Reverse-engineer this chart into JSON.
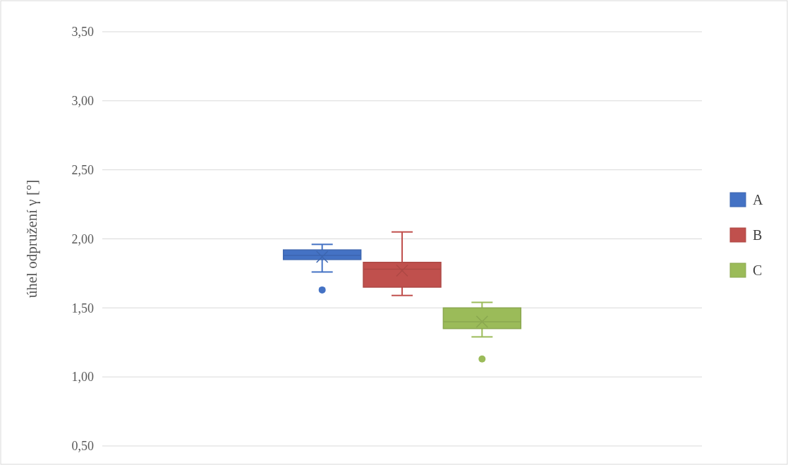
{
  "chart_data": {
    "type": "box",
    "ylabel": "úhel odpružení γ [°]",
    "categories": [
      null
    ],
    "series": [
      {
        "name": "A",
        "color": "#4472c4",
        "boxes": [
          {
            "low": 1.76,
            "q1": 1.85,
            "median": 1.88,
            "q3": 1.92,
            "high": 1.96,
            "mean": 1.87,
            "outliers": [
              1.63
            ]
          }
        ]
      },
      {
        "name": "B",
        "color": "#c0504d",
        "boxes": [
          {
            "low": 1.59,
            "q1": 1.65,
            "median": 1.78,
            "q3": 1.83,
            "high": 2.05,
            "mean": 1.77
          }
        ]
      },
      {
        "name": "C",
        "color": "#9bbb59",
        "boxes": [
          {
            "low": 1.29,
            "q1": 1.35,
            "median": 1.4,
            "q3": 1.5,
            "high": 1.54,
            "mean": 1.4,
            "outliers": [
              1.13
            ]
          }
        ]
      }
    ],
    "ylim": [
      0.5,
      3.5
    ],
    "yticks": [
      {
        "value": 0.5,
        "label": "0,50"
      },
      {
        "value": 1,
        "label": "1,00"
      },
      {
        "value": 1.5,
        "label": "1,50"
      },
      {
        "value": 2,
        "label": "2,00"
      },
      {
        "value": 2.5,
        "label": "2,50"
      },
      {
        "value": 3,
        "label": "3,00"
      },
      {
        "value": 3.5,
        "label": "3,50"
      }
    ],
    "grid": "y",
    "legend": "right",
    "tick_labels": "y"
  }
}
